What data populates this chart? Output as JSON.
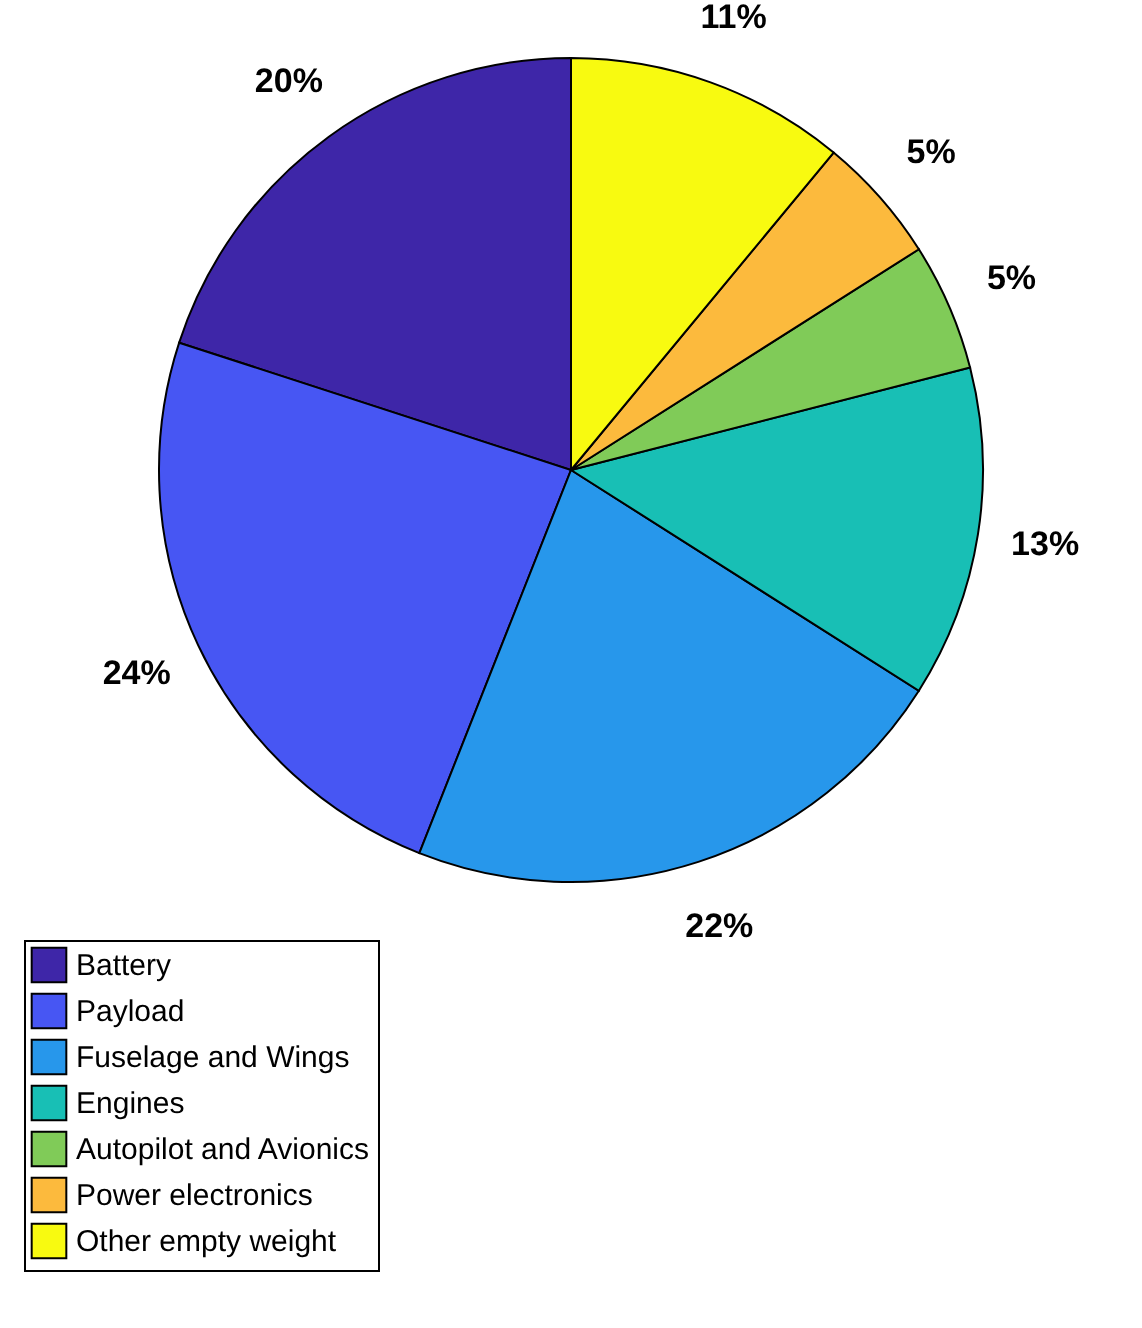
{
  "chart_data": {
    "type": "pie",
    "categories": [
      "Battery",
      "Payload",
      "Fuselage and Wings",
      "Engines",
      "Autopilot and Avionics",
      "Power electronics",
      "Other empty weight"
    ],
    "values": [
      20,
      24,
      22,
      13,
      5,
      5,
      11
    ],
    "value_labels": [
      "20%",
      "24%",
      "22%",
      "13%",
      "5%",
      "5%",
      "11%"
    ],
    "colors": [
      "#3e26a8",
      "#4756f3",
      "#2797eb",
      "#18bfb5",
      "#80cb58",
      "#fcba3d",
      "#f8fa10"
    ],
    "legend": "bottom left"
  }
}
